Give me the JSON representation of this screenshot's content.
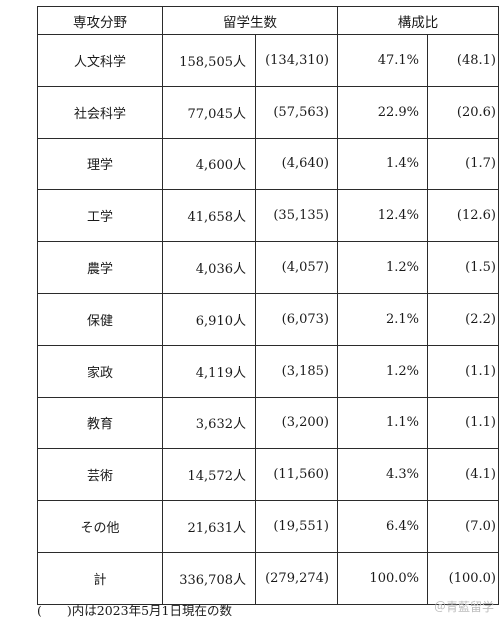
{
  "header": {
    "field": "専攻分野",
    "students": "留学生数",
    "ratio": "構成比"
  },
  "rows": [
    {
      "field": "人文科学",
      "count": "158,505人",
      "prev_count": "(134,310)",
      "pct": "47.1%",
      "prev_pct": "(48.1)"
    },
    {
      "field": "社会科学",
      "count": "77,045人",
      "prev_count": "(57,563)",
      "pct": "22.9%",
      "prev_pct": "(20.6)"
    },
    {
      "field": "理学",
      "count": "4,600人",
      "prev_count": "(4,640)",
      "pct": "1.4%",
      "prev_pct": "(1.7)"
    },
    {
      "field": "工学",
      "count": "41,658人",
      "prev_count": "(35,135)",
      "pct": "12.4%",
      "prev_pct": "(12.6)"
    },
    {
      "field": "農学",
      "count": "4,036人",
      "prev_count": "(4,057)",
      "pct": "1.2%",
      "prev_pct": "(1.5)"
    },
    {
      "field": "保健",
      "count": "6,910人",
      "prev_count": "(6,073)",
      "pct": "2.1%",
      "prev_pct": "(2.2)"
    },
    {
      "field": "家政",
      "count": "4,119人",
      "prev_count": "(3,185)",
      "pct": "1.2%",
      "prev_pct": "(1.1)"
    },
    {
      "field": "教育",
      "count": "3,632人",
      "prev_count": "(3,200)",
      "pct": "1.1%",
      "prev_pct": "(1.1)"
    },
    {
      "field": "芸術",
      "count": "14,572人",
      "prev_count": "(11,560)",
      "pct": "4.3%",
      "prev_pct": "(4.1)"
    },
    {
      "field": "その他",
      "count": "21,631人",
      "prev_count": "(19,551)",
      "pct": "6.4%",
      "prev_pct": "(7.0)"
    },
    {
      "field": "計",
      "count": "336,708人",
      "prev_count": "(279,274)",
      "pct": "100.0%",
      "prev_pct": "(100.0)"
    }
  ],
  "footnote": "(　　)内は2023年5月1日現在の数",
  "watermark": "＠青藍留学"
}
